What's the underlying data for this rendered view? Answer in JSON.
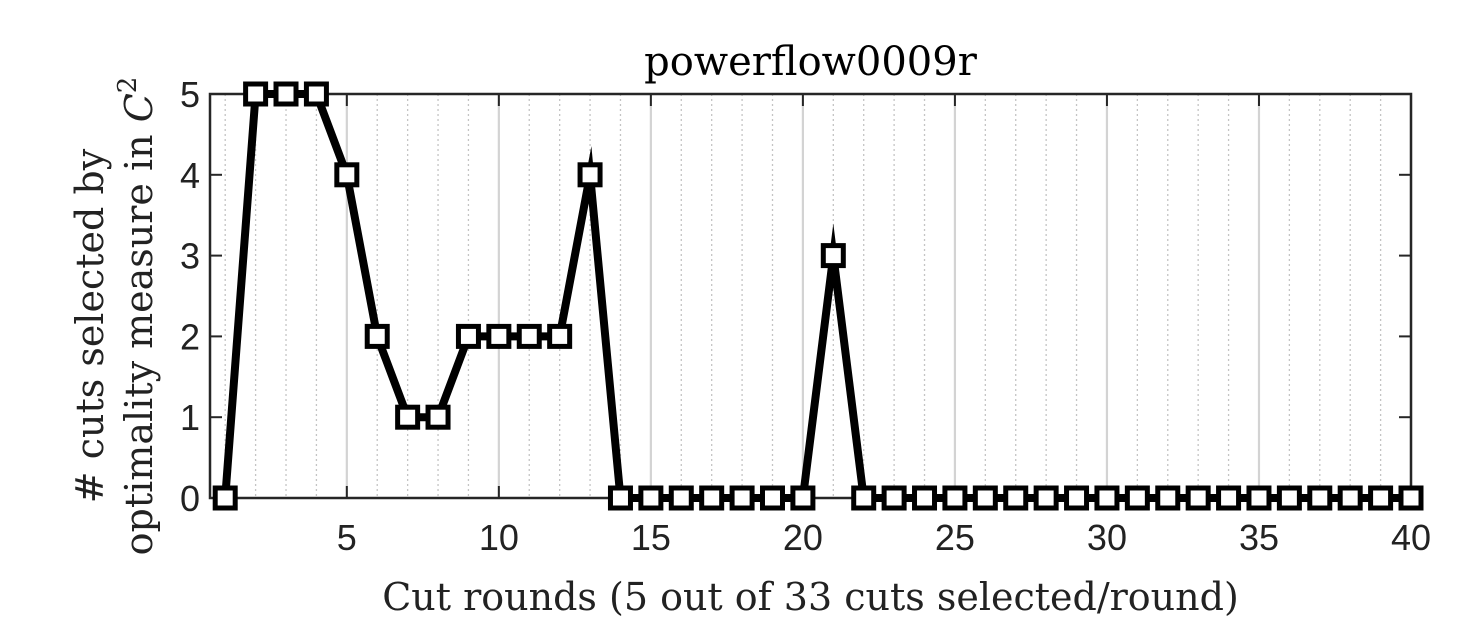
{
  "chart_data": {
    "type": "line",
    "title": "powerflow0009r",
    "xlabel": "Cut rounds (5 out of 33 cuts selected/round)",
    "ylabel_line1": "# cuts selected by",
    "ylabel_line2": "optimality measure in",
    "ylabel_math": "C",
    "ylabel_math_sup": "2",
    "xlim": [
      0.5,
      40
    ],
    "ylim": [
      0,
      5
    ],
    "xticks": [
      5,
      10,
      15,
      20,
      25,
      30,
      35,
      40
    ],
    "yticks": [
      0,
      1,
      2,
      3,
      4,
      5
    ],
    "grid": "vertical",
    "marker": "square",
    "line_color": "#000000",
    "series": [
      {
        "x": [
          1,
          2,
          3,
          4,
          5,
          6,
          7,
          8,
          9,
          10,
          11,
          12,
          13,
          14,
          15,
          16,
          17,
          18,
          19,
          20,
          21,
          22,
          23,
          24,
          25,
          26,
          27,
          28,
          29,
          30,
          31,
          32,
          33,
          34,
          35,
          36,
          37,
          38,
          39,
          40
        ],
        "values": [
          0,
          5,
          5,
          5,
          4,
          2,
          1,
          1,
          2,
          2,
          2,
          2,
          4,
          0,
          0,
          0,
          0,
          0,
          0,
          0,
          3,
          0,
          0,
          0,
          0,
          0,
          0,
          0,
          0,
          0,
          0,
          0,
          0,
          0,
          0,
          0,
          0,
          0,
          0,
          0
        ]
      }
    ]
  }
}
